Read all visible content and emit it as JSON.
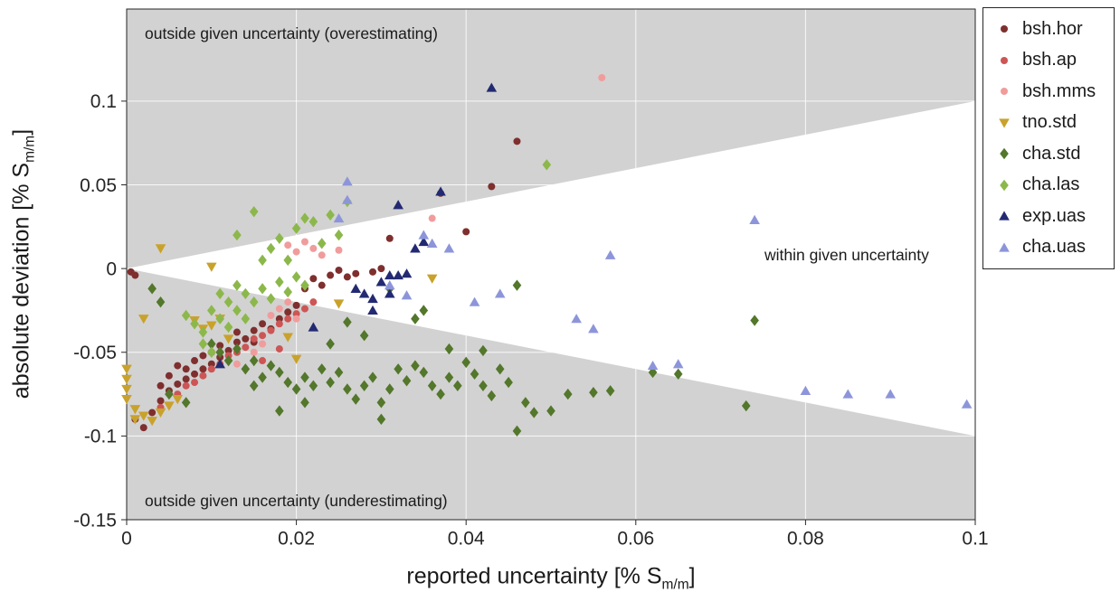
{
  "figure": {
    "annotations": {
      "over": "outside given uncertainty (overestimating)",
      "under": "outside given uncertainty (underestimating)",
      "within": "within given uncertainty"
    },
    "xlabel": {
      "prefix": "reported uncertainty [% S",
      "sub": "m/m",
      "suffix": "]"
    },
    "ylabel": {
      "prefix": "absolute deviation [% S",
      "sub": "m/m",
      "suffix": "]"
    }
  },
  "chart_data": {
    "type": "scatter",
    "xlim": [
      0,
      0.1
    ],
    "ylim": [
      -0.15,
      0.155
    ],
    "grid": true,
    "legend_position": "outside-top-right",
    "region_color": "#d2d2d2",
    "x_ticks": {
      "values": [
        0,
        0.02,
        0.04,
        0.06,
        0.08,
        0.1
      ],
      "labels": [
        "0",
        "0.02",
        "0.04",
        "0.06",
        "0.08",
        "0.1"
      ]
    },
    "y_ticks": {
      "values": [
        -0.15,
        -0.1,
        -0.05,
        0,
        0.05,
        0.1
      ],
      "labels": [
        "-0.15",
        "-0.1",
        "-0.05",
        "0",
        "0.05",
        "0.1"
      ]
    },
    "shaded_regions": [
      {
        "name": "region-overestimating",
        "polygon": [
          [
            0,
            0
          ],
          [
            0.1,
            0.1
          ],
          [
            0.1,
            0.155
          ],
          [
            0,
            0.155
          ]
        ]
      },
      {
        "name": "region-underestimating",
        "polygon": [
          [
            0,
            0
          ],
          [
            0.1,
            -0.1
          ],
          [
            0.1,
            -0.15
          ],
          [
            0,
            -0.15
          ]
        ]
      }
    ],
    "series": [
      {
        "name": "bsh.hor",
        "marker": "circle",
        "color": "#7e2f2e",
        "points": [
          [
            0.0005,
            -0.002
          ],
          [
            0.001,
            -0.004
          ],
          [
            0.001,
            -0.09
          ],
          [
            0.002,
            -0.095
          ],
          [
            0.003,
            -0.086
          ],
          [
            0.004,
            -0.079
          ],
          [
            0.004,
            -0.07
          ],
          [
            0.005,
            -0.073
          ],
          [
            0.005,
            -0.064
          ],
          [
            0.006,
            -0.069
          ],
          [
            0.006,
            -0.058
          ],
          [
            0.007,
            -0.066
          ],
          [
            0.007,
            -0.06
          ],
          [
            0.008,
            -0.063
          ],
          [
            0.008,
            -0.055
          ],
          [
            0.009,
            -0.06
          ],
          [
            0.009,
            -0.052
          ],
          [
            0.01,
            -0.057
          ],
          [
            0.01,
            -0.05
          ],
          [
            0.011,
            -0.053
          ],
          [
            0.011,
            -0.046
          ],
          [
            0.012,
            -0.049
          ],
          [
            0.013,
            -0.044
          ],
          [
            0.013,
            -0.038
          ],
          [
            0.014,
            -0.042
          ],
          [
            0.015,
            -0.037
          ],
          [
            0.015,
            -0.044
          ],
          [
            0.016,
            -0.033
          ],
          [
            0.017,
            -0.036
          ],
          [
            0.018,
            -0.03
          ],
          [
            0.019,
            -0.026
          ],
          [
            0.02,
            -0.022
          ],
          [
            0.021,
            -0.012
          ],
          [
            0.022,
            -0.006
          ],
          [
            0.023,
            -0.01
          ],
          [
            0.024,
            -0.004
          ],
          [
            0.025,
            -0.001
          ],
          [
            0.026,
            -0.005
          ],
          [
            0.027,
            -0.003
          ],
          [
            0.029,
            -0.002
          ],
          [
            0.03,
            0.0
          ],
          [
            0.031,
            0.018
          ],
          [
            0.037,
            0.045
          ],
          [
            0.04,
            0.022
          ],
          [
            0.043,
            0.049
          ],
          [
            0.046,
            0.076
          ]
        ]
      },
      {
        "name": "bsh.ap",
        "marker": "circle",
        "color": "#cd5555",
        "points": [
          [
            0.004,
            -0.083
          ],
          [
            0.006,
            -0.075
          ],
          [
            0.007,
            -0.07
          ],
          [
            0.008,
            -0.068
          ],
          [
            0.009,
            -0.064
          ],
          [
            0.01,
            -0.06
          ],
          [
            0.011,
            -0.057
          ],
          [
            0.012,
            -0.052
          ],
          [
            0.013,
            -0.05
          ],
          [
            0.014,
            -0.047
          ],
          [
            0.015,
            -0.042
          ],
          [
            0.016,
            -0.04
          ],
          [
            0.017,
            -0.037
          ],
          [
            0.018,
            -0.033
          ],
          [
            0.019,
            -0.03
          ],
          [
            0.02,
            -0.027
          ],
          [
            0.021,
            -0.024
          ],
          [
            0.016,
            -0.055
          ],
          [
            0.018,
            -0.048
          ],
          [
            0.022,
            -0.02
          ]
        ]
      },
      {
        "name": "bsh.mms",
        "marker": "circle",
        "color": "#f19c9c",
        "points": [
          [
            0.013,
            -0.057
          ],
          [
            0.015,
            -0.05
          ],
          [
            0.016,
            -0.045
          ],
          [
            0.017,
            -0.028
          ],
          [
            0.018,
            -0.024
          ],
          [
            0.019,
            -0.02
          ],
          [
            0.019,
            0.014
          ],
          [
            0.02,
            0.01
          ],
          [
            0.021,
            0.016
          ],
          [
            0.022,
            0.012
          ],
          [
            0.023,
            0.008
          ],
          [
            0.025,
            0.011
          ],
          [
            0.036,
            0.03
          ],
          [
            0.056,
            0.114
          ],
          [
            0.02,
            -0.03
          ]
        ]
      },
      {
        "name": "tno.std",
        "marker": "triangle-down",
        "color": "#c9a22b",
        "points": [
          [
            0.0,
            -0.06
          ],
          [
            0.0,
            -0.066
          ],
          [
            0.0,
            -0.072
          ],
          [
            0.0,
            -0.078
          ],
          [
            0.001,
            -0.084
          ],
          [
            0.001,
            -0.09
          ],
          [
            0.002,
            -0.088
          ],
          [
            0.003,
            -0.091
          ],
          [
            0.004,
            -0.086
          ],
          [
            0.005,
            -0.082
          ],
          [
            0.006,
            -0.078
          ],
          [
            0.002,
            -0.03
          ],
          [
            0.004,
            0.012
          ],
          [
            0.008,
            -0.031
          ],
          [
            0.009,
            -0.036
          ],
          [
            0.01,
            -0.034
          ],
          [
            0.011,
            -0.03
          ],
          [
            0.012,
            -0.042
          ],
          [
            0.019,
            -0.041
          ],
          [
            0.02,
            -0.054
          ],
          [
            0.025,
            -0.021
          ],
          [
            0.036,
            -0.006
          ],
          [
            0.01,
            0.001
          ]
        ]
      },
      {
        "name": "cha.std",
        "marker": "diamond",
        "color": "#53772b",
        "points": [
          [
            0.003,
            -0.012
          ],
          [
            0.004,
            -0.02
          ],
          [
            0.005,
            -0.075
          ],
          [
            0.007,
            -0.08
          ],
          [
            0.01,
            -0.045
          ],
          [
            0.011,
            -0.05
          ],
          [
            0.012,
            -0.055
          ],
          [
            0.013,
            -0.048
          ],
          [
            0.014,
            -0.06
          ],
          [
            0.015,
            -0.055
          ],
          [
            0.015,
            -0.07
          ],
          [
            0.016,
            -0.065
          ],
          [
            0.017,
            -0.058
          ],
          [
            0.018,
            -0.062
          ],
          [
            0.018,
            -0.085
          ],
          [
            0.019,
            -0.068
          ],
          [
            0.02,
            -0.072
          ],
          [
            0.021,
            -0.065
          ],
          [
            0.021,
            -0.08
          ],
          [
            0.022,
            -0.07
          ],
          [
            0.023,
            -0.06
          ],
          [
            0.024,
            -0.068
          ],
          [
            0.024,
            -0.045
          ],
          [
            0.025,
            -0.062
          ],
          [
            0.026,
            -0.072
          ],
          [
            0.026,
            -0.032
          ],
          [
            0.027,
            -0.078
          ],
          [
            0.028,
            -0.07
          ],
          [
            0.028,
            -0.04
          ],
          [
            0.029,
            -0.065
          ],
          [
            0.03,
            -0.08
          ],
          [
            0.03,
            -0.09
          ],
          [
            0.031,
            -0.072
          ],
          [
            0.031,
            -0.012
          ],
          [
            0.032,
            -0.06
          ],
          [
            0.033,
            -0.067
          ],
          [
            0.034,
            -0.058
          ],
          [
            0.034,
            -0.03
          ],
          [
            0.035,
            -0.062
          ],
          [
            0.035,
            -0.025
          ],
          [
            0.036,
            -0.07
          ],
          [
            0.037,
            -0.075
          ],
          [
            0.038,
            -0.065
          ],
          [
            0.038,
            -0.048
          ],
          [
            0.039,
            -0.07
          ],
          [
            0.04,
            -0.056
          ],
          [
            0.041,
            -0.063
          ],
          [
            0.042,
            -0.07
          ],
          [
            0.042,
            -0.049
          ],
          [
            0.043,
            -0.076
          ],
          [
            0.044,
            -0.06
          ],
          [
            0.045,
            -0.068
          ],
          [
            0.046,
            -0.097
          ],
          [
            0.046,
            -0.01
          ],
          [
            0.047,
            -0.08
          ],
          [
            0.048,
            -0.086
          ],
          [
            0.05,
            -0.085
          ],
          [
            0.052,
            -0.075
          ],
          [
            0.055,
            -0.074
          ],
          [
            0.057,
            -0.073
          ],
          [
            0.062,
            -0.062
          ],
          [
            0.065,
            -0.063
          ],
          [
            0.073,
            -0.082
          ],
          [
            0.074,
            -0.031
          ]
        ]
      },
      {
        "name": "cha.las",
        "marker": "diamond",
        "color": "#8cb84b",
        "points": [
          [
            0.007,
            -0.028
          ],
          [
            0.008,
            -0.033
          ],
          [
            0.009,
            -0.038
          ],
          [
            0.009,
            -0.045
          ],
          [
            0.01,
            -0.025
          ],
          [
            0.01,
            -0.05
          ],
          [
            0.011,
            -0.03
          ],
          [
            0.011,
            -0.015
          ],
          [
            0.012,
            -0.035
          ],
          [
            0.012,
            -0.02
          ],
          [
            0.013,
            -0.025
          ],
          [
            0.013,
            0.02
          ],
          [
            0.013,
            -0.01
          ],
          [
            0.014,
            -0.015
          ],
          [
            0.014,
            -0.03
          ],
          [
            0.015,
            -0.02
          ],
          [
            0.015,
            0.034
          ],
          [
            0.016,
            -0.012
          ],
          [
            0.016,
            0.005
          ],
          [
            0.017,
            -0.018
          ],
          [
            0.017,
            0.012
          ],
          [
            0.018,
            -0.008
          ],
          [
            0.018,
            0.018
          ],
          [
            0.019,
            -0.014
          ],
          [
            0.019,
            0.005
          ],
          [
            0.02,
            0.024
          ],
          [
            0.02,
            -0.005
          ],
          [
            0.021,
            0.03
          ],
          [
            0.021,
            -0.01
          ],
          [
            0.022,
            0.028
          ],
          [
            0.023,
            0.015
          ],
          [
            0.024,
            0.032
          ],
          [
            0.025,
            0.02
          ],
          [
            0.026,
            0.04
          ],
          [
            0.0495,
            0.062
          ]
        ]
      },
      {
        "name": "exp.uas",
        "marker": "triangle-up",
        "color": "#232a72",
        "points": [
          [
            0.011,
            -0.057
          ],
          [
            0.022,
            -0.035
          ],
          [
            0.027,
            -0.012
          ],
          [
            0.028,
            -0.015
          ],
          [
            0.029,
            -0.018
          ],
          [
            0.029,
            -0.025
          ],
          [
            0.03,
            -0.008
          ],
          [
            0.031,
            -0.004
          ],
          [
            0.031,
            -0.015
          ],
          [
            0.032,
            -0.004
          ],
          [
            0.033,
            -0.003
          ],
          [
            0.034,
            0.012
          ],
          [
            0.035,
            0.016
          ],
          [
            0.032,
            0.038
          ],
          [
            0.037,
            0.046
          ],
          [
            0.043,
            0.108
          ]
        ]
      },
      {
        "name": "cha.uas",
        "marker": "triangle-up",
        "color": "#8d95da",
        "points": [
          [
            0.025,
            0.03
          ],
          [
            0.026,
            0.052
          ],
          [
            0.026,
            0.041
          ],
          [
            0.031,
            -0.01
          ],
          [
            0.033,
            -0.016
          ],
          [
            0.035,
            0.02
          ],
          [
            0.036,
            0.015
          ],
          [
            0.038,
            0.012
          ],
          [
            0.041,
            -0.02
          ],
          [
            0.044,
            -0.015
          ],
          [
            0.053,
            -0.03
          ],
          [
            0.055,
            -0.036
          ],
          [
            0.057,
            0.008
          ],
          [
            0.062,
            -0.058
          ],
          [
            0.065,
            -0.057
          ],
          [
            0.074,
            0.029
          ],
          [
            0.08,
            -0.073
          ],
          [
            0.085,
            -0.075
          ],
          [
            0.09,
            -0.075
          ],
          [
            0.099,
            -0.081
          ]
        ]
      }
    ]
  }
}
